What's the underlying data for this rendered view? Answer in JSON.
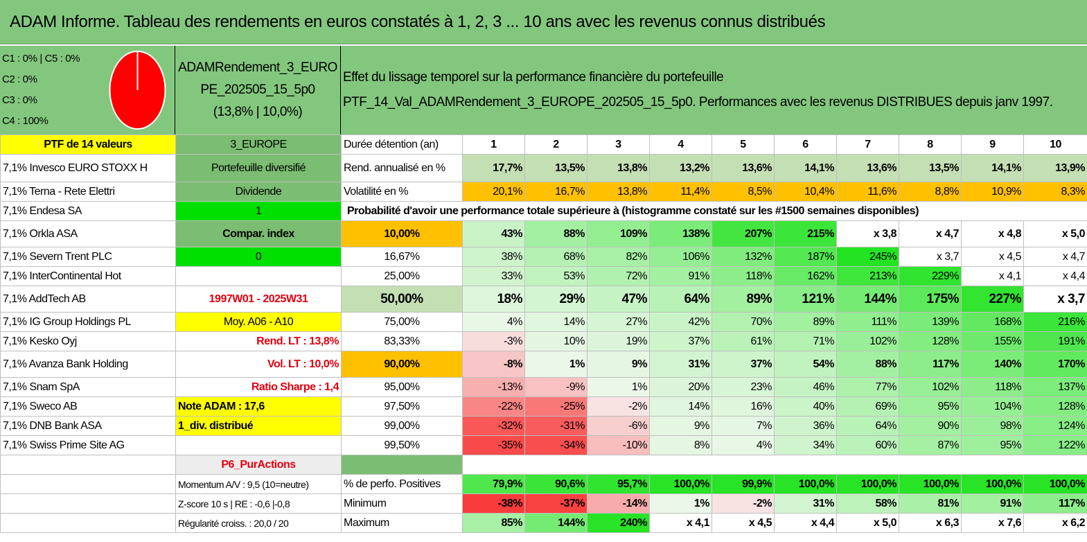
{
  "title": "ADAM Informe. Tableau des rendements en euros constatés à 1, 2, 3 ... 10 ans avec les revenus connus distribués",
  "legend": [
    "C1 : 0% | C5 : 0%",
    "C2 : 0%",
    "C3 : 0%",
    "C4 : 100%"
  ],
  "portfolio_name": [
    "ADAMRendement_3_EURO",
    "PE_202505_15_5p0",
    "(13,8% | 10,0%)"
  ],
  "description": [
    "Effet du lissage temporel sur la performance financière du portefeuille",
    "PTF_14_Val_ADAMRendement_3_EUROPE_202505_15_5p0. Performances avec les revenus DISTRIBUES depuis janv 1997."
  ],
  "colors": {
    "header_green": "#83c77e",
    "yellow": "#ffff00",
    "bright_green": "#00e000",
    "orange": "#ffc000",
    "pie_red": "#ff0000",
    "text_red": "#e3000f"
  },
  "header_row": {
    "c0": "PTF de 14 valeurs",
    "c1": "3_EUROPE",
    "c2": "Durée détention (an)",
    "years": [
      "1",
      "2",
      "3",
      "4",
      "5",
      "6",
      "7",
      "8",
      "9",
      "10"
    ]
  },
  "holdings": [
    "7,1% Invesco EURO STOXX H",
    "7,1% Terna - Rete Elettri",
    "7,1% Endesa SA",
    "7,1% Orkla ASA",
    "7,1% Severn Trent PLC",
    "7,1% InterContinental Hot",
    "7,1% AddTech AB",
    "7,1% IG Group Holdings PL",
    "7,1% Kesko Oyj",
    "7,1% Avanza Bank Holding",
    "7,1% Snam SpA",
    "7,1% Sweco AB",
    "7,1% DNB Bank ASA",
    "7,1% Swiss Prime Site AG"
  ],
  "info_column": [
    "Portefeuille diversifié",
    "Dividende",
    "1",
    "Compar. index",
    "0",
    "",
    "1997W01 - 2025W31",
    "Moy. A06 - A10",
    "Rend. LT : 13,8%",
    "Vol. LT : 10,0%",
    "Ratio Sharpe : 1,4",
    "Note ADAM : 17,6",
    "1_div. distribué",
    "",
    "P6_PurActions"
  ],
  "rend": {
    "label": "Rend. annualisé en %",
    "values": [
      "17,7%",
      "13,5%",
      "13,8%",
      "13,2%",
      "13,6%",
      "14,1%",
      "13,6%",
      "13,5%",
      "14,1%",
      "13,9%"
    ]
  },
  "vol": {
    "label": "Volatilité en %",
    "values": [
      "20,1%",
      "16,7%",
      "13,8%",
      "11,4%",
      "8,5%",
      "10,4%",
      "11,6%",
      "8,8%",
      "10,9%",
      "8,3%"
    ]
  },
  "prob_title": "Probabilité d'avoir une performance totale supérieure à (histogramme constaté sur les #1500 semaines disponibles)",
  "prob_rows": [
    {
      "p": "10,00%",
      "v": [
        "43%",
        "88%",
        "109%",
        "138%",
        "207%",
        "215%",
        "x 3,8",
        "x 4,7",
        "x 4,8",
        "x 5,0"
      ]
    },
    {
      "p": "16,67%",
      "v": [
        "38%",
        "68%",
        "82%",
        "106%",
        "132%",
        "187%",
        "245%",
        "x 3,7",
        "x 4,5",
        "x 4,7"
      ]
    },
    {
      "p": "25,00%",
      "v": [
        "33%",
        "53%",
        "72%",
        "91%",
        "118%",
        "162%",
        "213%",
        "229%",
        "x 4,1",
        "x 4,4"
      ]
    },
    {
      "p": "50,00%",
      "v": [
        "18%",
        "29%",
        "47%",
        "64%",
        "89%",
        "121%",
        "144%",
        "175%",
        "227%",
        "x 3,7"
      ]
    },
    {
      "p": "75,00%",
      "v": [
        "4%",
        "14%",
        "27%",
        "42%",
        "70%",
        "89%",
        "111%",
        "139%",
        "168%",
        "216%"
      ]
    },
    {
      "p": "83,33%",
      "v": [
        "-3%",
        "10%",
        "19%",
        "37%",
        "61%",
        "71%",
        "102%",
        "128%",
        "155%",
        "191%"
      ]
    },
    {
      "p": "90,00%",
      "v": [
        "-8%",
        "1%",
        "9%",
        "31%",
        "37%",
        "54%",
        "88%",
        "117%",
        "140%",
        "170%"
      ]
    },
    {
      "p": "95,00%",
      "v": [
        "-13%",
        "-9%",
        "1%",
        "20%",
        "23%",
        "46%",
        "77%",
        "102%",
        "118%",
        "137%"
      ]
    },
    {
      "p": "97,50%",
      "v": [
        "-22%",
        "-25%",
        "-2%",
        "14%",
        "16%",
        "40%",
        "69%",
        "95%",
        "104%",
        "128%"
      ]
    },
    {
      "p": "99,00%",
      "v": [
        "-32%",
        "-31%",
        "-6%",
        "9%",
        "7%",
        "36%",
        "64%",
        "90%",
        "98%",
        "124%"
      ]
    },
    {
      "p": "99,50%",
      "v": [
        "-35%",
        "-34%",
        "-10%",
        "8%",
        "4%",
        "34%",
        "60%",
        "87%",
        "95%",
        "122%"
      ]
    }
  ],
  "stats": [
    {
      "left": "Momentum A/V : 9,5 (10=neutre)",
      "label": "% de perfo. Positives",
      "v": [
        "79,9%",
        "90,6%",
        "95,7%",
        "100,0%",
        "99,9%",
        "100,0%",
        "100,0%",
        "100,0%",
        "100,0%",
        "100,0%"
      ]
    },
    {
      "left": "Z-score 10 s | RE : -0,6 |-0,8",
      "label": "Minimum",
      "v": [
        "-38%",
        "-37%",
        "-14%",
        "1%",
        "-2%",
        "31%",
        "58%",
        "81%",
        "91%",
        "117%"
      ]
    },
    {
      "left": "Régularité croiss. : 20,0 / 20",
      "label": "Maximum",
      "v": [
        "85%",
        "144%",
        "240%",
        "x 4,1",
        "x 4,5",
        "x 4,4",
        "x 5,0",
        "x 6,3",
        "x 7,6",
        "x 6,2"
      ]
    }
  ]
}
